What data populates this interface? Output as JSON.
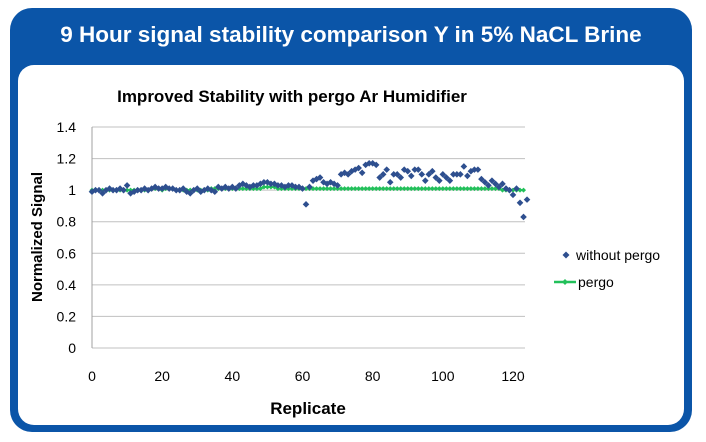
{
  "header": {
    "title": "9 Hour signal stability comparison Y in 5% NaCL Brine"
  },
  "chart_data": {
    "type": "scatter",
    "title": "Improved Stability with pergo Ar Humidifier",
    "xlabel": "Replicate",
    "ylabel": "Normalized Signal",
    "xlim": [
      0,
      125
    ],
    "ylim": [
      0,
      1.4
    ],
    "xticks": [
      "0",
      "20",
      "40",
      "60",
      "80",
      "100",
      "120"
    ],
    "yticks": [
      "0",
      "0.2",
      "0.4",
      "0.6",
      "0.8",
      "1",
      "1.2",
      "1.4"
    ],
    "grid": "horizontal",
    "legend_position": "right",
    "series": [
      {
        "name": "without pergo",
        "color": "#2e4f8f",
        "marker": "diamond",
        "values": [
          0.99,
          1.0,
          1.0,
          0.98,
          1.0,
          1.01,
          1.0,
          1.0,
          1.01,
          1.0,
          1.03,
          0.98,
          0.99,
          1.0,
          1.0,
          1.01,
          1.0,
          1.01,
          1.02,
          1.01,
          1.01,
          1.02,
          1.01,
          1.01,
          1.0,
          1.0,
          1.01,
          0.99,
          0.98,
          1.0,
          1.01,
          0.99,
          1.0,
          1.01,
          1.0,
          0.99,
          1.02,
          1.01,
          1.02,
          1.01,
          1.02,
          1.01,
          1.03,
          1.04,
          1.03,
          1.02,
          1.03,
          1.03,
          1.04,
          1.05,
          1.05,
          1.04,
          1.04,
          1.03,
          1.03,
          1.02,
          1.03,
          1.03,
          1.02,
          1.02,
          1.01,
          0.91,
          1.02,
          1.06,
          1.07,
          1.08,
          1.05,
          1.04,
          1.05,
          1.04,
          1.03,
          1.1,
          1.11,
          1.1,
          1.12,
          1.13,
          1.14,
          1.11,
          1.16,
          1.17,
          1.17,
          1.16,
          1.08,
          1.1,
          1.13,
          1.05,
          1.1,
          1.1,
          1.08,
          1.13,
          1.12,
          1.09,
          1.13,
          1.13,
          1.1,
          1.06,
          1.1,
          1.12,
          1.08,
          1.06,
          1.1,
          1.08,
          1.06,
          1.1,
          1.1,
          1.1,
          1.15,
          1.09,
          1.12,
          1.13,
          1.13,
          1.07,
          1.05,
          1.03,
          1.06,
          1.04,
          1.02,
          1.04,
          1.01,
          1.0,
          0.97,
          1.01,
          0.92,
          0.83,
          0.94
        ]
      },
      {
        "name": "pergo",
        "color": "#22c05a",
        "marker": "line-diamond",
        "values": [
          1.0,
          1.0,
          1.0,
          1.0,
          1.0,
          1.0,
          1.0,
          1.0,
          1.0,
          1.0,
          1.0,
          1.0,
          1.0,
          1.0,
          1.0,
          1.0,
          1.0,
          1.01,
          1.01,
          1.01,
          1.0,
          1.01,
          1.01,
          1.01,
          1.0,
          1.0,
          1.0,
          1.0,
          1.0,
          1.0,
          1.0,
          1.0,
          1.0,
          1.0,
          1.01,
          1.01,
          1.01,
          1.01,
          1.01,
          1.01,
          1.01,
          1.01,
          1.01,
          1.01,
          1.01,
          1.01,
          1.01,
          1.01,
          1.01,
          1.02,
          1.02,
          1.02,
          1.02,
          1.01,
          1.01,
          1.01,
          1.01,
          1.01,
          1.01,
          1.01,
          1.01,
          1.01,
          1.01,
          1.01,
          1.01,
          1.01,
          1.01,
          1.01,
          1.01,
          1.01,
          1.01,
          1.01,
          1.01,
          1.01,
          1.01,
          1.01,
          1.01,
          1.01,
          1.01,
          1.01,
          1.01,
          1.01,
          1.01,
          1.01,
          1.01,
          1.01,
          1.01,
          1.01,
          1.01,
          1.01,
          1.01,
          1.01,
          1.01,
          1.01,
          1.01,
          1.01,
          1.01,
          1.01,
          1.01,
          1.01,
          1.01,
          1.01,
          1.01,
          1.01,
          1.01,
          1.01,
          1.01,
          1.01,
          1.01,
          1.01,
          1.01,
          1.01,
          1.01,
          1.01,
          1.01,
          1.01,
          1.01,
          1.0,
          1.0,
          1.0,
          1.0,
          1.0,
          1.0,
          1.0
        ]
      }
    ]
  }
}
